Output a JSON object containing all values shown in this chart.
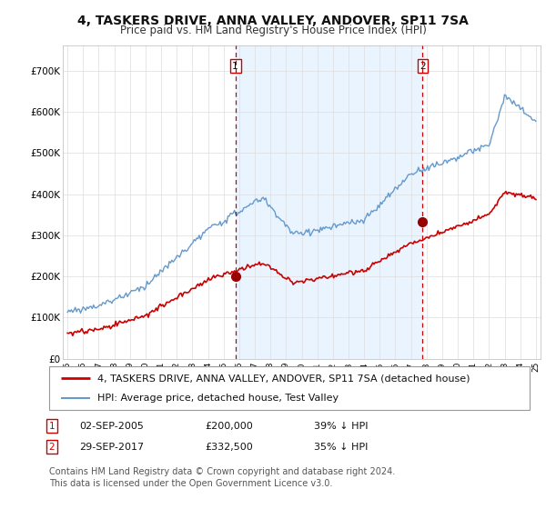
{
  "title": "4, TASKERS DRIVE, ANNA VALLEY, ANDOVER, SP11 7SA",
  "subtitle": "Price paid vs. HM Land Registry's House Price Index (HPI)",
  "background_color": "#ffffff",
  "grid_color": "#dddddd",
  "hpi_color": "#6699cc",
  "hpi_fill_color": "#ddeeff",
  "price_color": "#cc0000",
  "marker_color": "#990000",
  "vline_color": "#cc0000",
  "ylim": [
    0,
    760000
  ],
  "yticks": [
    0,
    100000,
    200000,
    300000,
    400000,
    500000,
    600000,
    700000
  ],
  "ytick_labels": [
    "£0",
    "£100K",
    "£200K",
    "£300K",
    "£400K",
    "£500K",
    "£600K",
    "£700K"
  ],
  "sale1_year": 2005.75,
  "sale1_price": 200000,
  "sale2_year": 2017.75,
  "sale2_price": 332500,
  "legend_entries": [
    {
      "label": "4, TASKERS DRIVE, ANNA VALLEY, ANDOVER, SP11 7SA (detached house)",
      "color": "#cc0000",
      "lw": 2
    },
    {
      "label": "HPI: Average price, detached house, Test Valley",
      "color": "#6699cc",
      "lw": 1.5
    }
  ],
  "table_rows": [
    {
      "num": "1",
      "date": "02-SEP-2005",
      "price": "£200,000",
      "hpi": "39% ↓ HPI"
    },
    {
      "num": "2",
      "date": "29-SEP-2017",
      "price": "£332,500",
      "hpi": "35% ↓ HPI"
    }
  ],
  "footer": "Contains HM Land Registry data © Crown copyright and database right 2024.\nThis data is licensed under the Open Government Licence v3.0.",
  "title_fontsize": 10,
  "subtitle_fontsize": 8.5,
  "axis_fontsize": 7.5,
  "legend_fontsize": 8,
  "table_fontsize": 8,
  "footer_fontsize": 7
}
